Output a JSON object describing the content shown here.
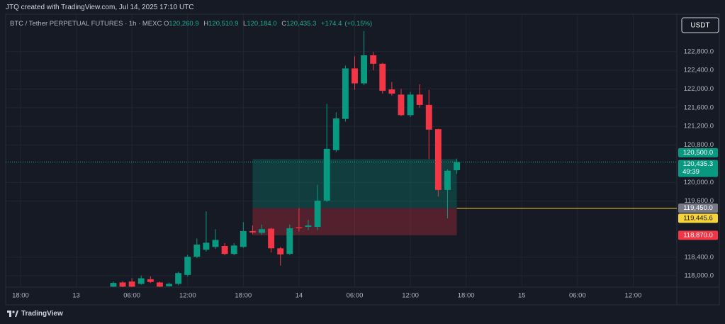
{
  "header": {
    "credit": "JTQ created with TradingView.com, Jul 14, 2025 17:10 UTC"
  },
  "legend": {
    "symbol": "BTC / Tether PERPETUAL FUTURES · 1h · MEXC",
    "open_letter": "O",
    "open": {
      "value": 120260.9,
      "label": "120,260.9"
    },
    "high_letter": "H",
    "high": {
      "value": 120510.9,
      "label": "120,510.9"
    },
    "low_letter": "L",
    "low": {
      "value": 120184.0,
      "label": "120,184.0"
    },
    "close_letter": "C",
    "close": {
      "value": 120435.3,
      "label": "120,435.3"
    },
    "change": {
      "value": 174.4,
      "label": "+174.4"
    },
    "change_pct": {
      "value": 0.15,
      "label": "(+0.15%)"
    }
  },
  "currency_button": "USDT",
  "footer": {
    "brand": "TradingView"
  },
  "chart_data": {
    "type": "candlestick",
    "up_color": "#089981",
    "down_color": "#f23645",
    "grid": true,
    "x": [
      10,
      11,
      12,
      13,
      14,
      15,
      16,
      17,
      18,
      19,
      20,
      21,
      22,
      23,
      24,
      25,
      26,
      27,
      28,
      29,
      30,
      31,
      32,
      33,
      34,
      35,
      36,
      37,
      38,
      39,
      40,
      41,
      42,
      43,
      44,
      45,
      46,
      47
    ],
    "open": [
      117770,
      117860,
      117880,
      117830,
      117930,
      117860,
      117780,
      117830,
      118020,
      118410,
      118560,
      118620,
      118640,
      118470,
      118620,
      118960,
      118920,
      119010,
      118590,
      118470,
      119040,
      119050,
      119050,
      119610,
      120690,
      121360,
      122440,
      122120,
      122720,
      122540,
      121990,
      121880,
      121440,
      121880,
      121660,
      121140,
      119840,
      120260.9
    ],
    "high": [
      117880,
      117890,
      117950,
      118010,
      117990,
      117880,
      117860,
      118090,
      118450,
      118800,
      119380,
      119000,
      118700,
      118700,
      119150,
      119080,
      119100,
      119030,
      118620,
      119100,
      119450,
      119200,
      119950,
      121680,
      121500,
      122500,
      122700,
      123240,
      122790,
      122560,
      122150,
      122000,
      121940,
      122100,
      121980,
      121150,
      120280,
      120510.9
    ],
    "low": [
      117760,
      117760,
      117760,
      117810,
      117850,
      117760,
      117770,
      117800,
      117990,
      118380,
      118520,
      118580,
      118440,
      118440,
      118600,
      118890,
      118880,
      118500,
      118220,
      118450,
      118950,
      118980,
      118980,
      119580,
      120650,
      121300,
      121980,
      122080,
      122400,
      121900,
      121860,
      121420,
      121400,
      121600,
      120500,
      119700,
      119230,
      120184.0
    ],
    "close": [
      117850,
      117770,
      117770,
      117950,
      117870,
      117770,
      117830,
      118060,
      118410,
      118670,
      118710,
      118770,
      118470,
      118650,
      118960,
      118930,
      119000,
      118590,
      118460,
      119020,
      119020,
      119080,
      119610,
      120720,
      121370,
      122440,
      122120,
      122720,
      122540,
      121960,
      121900,
      121440,
      121880,
      121660,
      121130,
      119840,
      120250,
      120435.3
    ],
    "xlim": [
      -1.6,
      70.7
    ],
    "xticks": [
      {
        "value": 0,
        "label": "18:00"
      },
      {
        "value": 6,
        "label": "13"
      },
      {
        "value": 12,
        "label": "06:00"
      },
      {
        "value": 18,
        "label": "12:00"
      },
      {
        "value": 24,
        "label": "18:00"
      },
      {
        "value": 30,
        "label": "14"
      },
      {
        "value": 36,
        "label": "06:00"
      },
      {
        "value": 42,
        "label": "12:00"
      },
      {
        "value": 48,
        "label": "18:00"
      },
      {
        "value": 54,
        "label": "15"
      },
      {
        "value": 60,
        "label": "06:00"
      },
      {
        "value": 66,
        "label": "12:00"
      }
    ],
    "ylim": [
      117760,
      123600
    ],
    "yticks": [
      {
        "value": 118000,
        "label": "118,000.0"
      },
      {
        "value": 118400,
        "label": "118,400.0"
      },
      {
        "value": 119600,
        "label": "119,600.0"
      },
      {
        "value": 120000,
        "label": "120,000.0"
      },
      {
        "value": 120800,
        "label": "120,800.0"
      },
      {
        "value": 121200,
        "label": "121,200.0"
      },
      {
        "value": 121600,
        "label": "121,600.0"
      },
      {
        "value": 122000,
        "label": "122,000.0"
      },
      {
        "value": 122400,
        "label": "122,400.0"
      },
      {
        "value": 122800,
        "label": "122,800.0"
      }
    ],
    "position": {
      "x_start": 25,
      "x_end": 47,
      "target": {
        "value": 120500,
        "label": "120,500.0"
      },
      "entry": {
        "value": 119450,
        "label": "119,450.0"
      },
      "stop": {
        "value": 118870,
        "label": "118,870.0"
      }
    },
    "current_price": {
      "value": 120435.3,
      "label": "120,435.3",
      "countdown": "49:39"
    },
    "horizontal_ray": {
      "value": 119445.6,
      "label": "119,445.6",
      "start": 47,
      "color": "#f7d33a"
    }
  }
}
